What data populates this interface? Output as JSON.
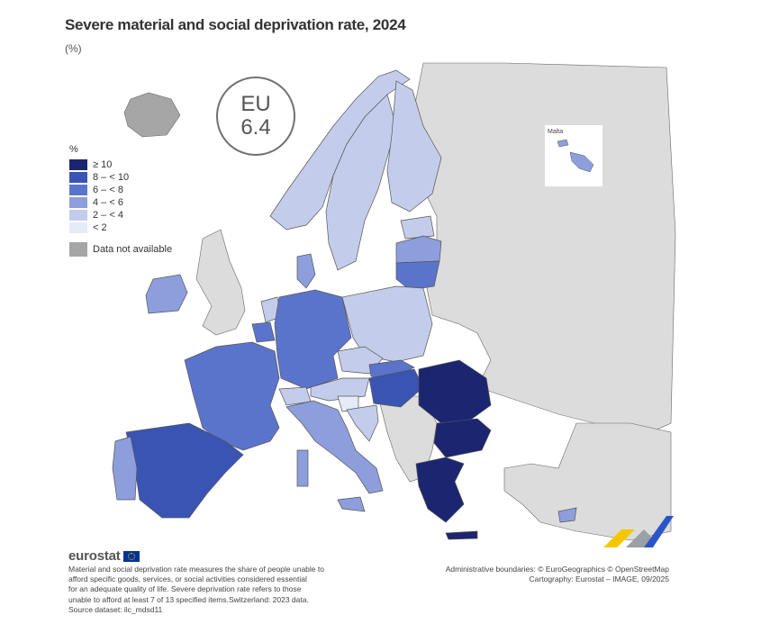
{
  "title": "Severe material and social deprivation rate, 2024",
  "unit": "(%)",
  "eu": {
    "label": "EU",
    "value": "6.4"
  },
  "legend": {
    "title": "%",
    "classes": [
      {
        "label": "≥ 10",
        "color": "#1b2570"
      },
      {
        "label": "8 – < 10",
        "color": "#3a54b4"
      },
      {
        "label": "6 – < 8",
        "color": "#5b74cb"
      },
      {
        "label": "4 – < 6",
        "color": "#8d9edc"
      },
      {
        "label": "2 – < 4",
        "color": "#c3cdeb"
      },
      {
        "label": "< 2",
        "color": "#e6ebf7"
      }
    ],
    "na_label": "Data not available",
    "na_color": "#a6a6a6"
  },
  "inset": {
    "label": "Malta"
  },
  "footer": {
    "logo_text": "eurostat",
    "note_lines": [
      "Material and social deprivation rate measures the share of people unable to",
      "afford specific goods, services, or social activities considered essential",
      "for an adequate quality of life. Severe deprivation rate refers to those",
      "unable to afford at least 7 of 13 specified items.Switzerland: 2023 data.",
      "Source dataset: ilc_mdsd11"
    ],
    "credit_lines": [
      "Administrative boundaries: © EuroGeographics © OpenStreetMap",
      "Cartography: Eurostat – IMAGE, 09/2025"
    ]
  },
  "colors": {
    "non_eu": "#dcdcdc",
    "border": "#555555",
    "sea": "#ffffff"
  }
}
